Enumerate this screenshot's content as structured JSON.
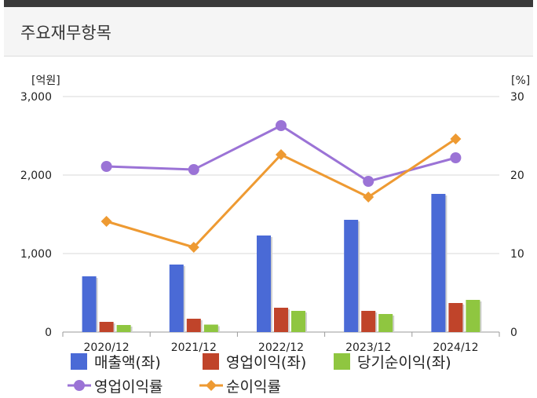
{
  "panel": {
    "title": "주요재무항목"
  },
  "chart_data": {
    "type": "bar",
    "categories": [
      "2020/12",
      "2021/12",
      "2022/12",
      "2023/12",
      "2024/12"
    ],
    "left_axis": {
      "unit_label": "[억원]",
      "ylim": [
        0,
        3000
      ],
      "ticks": [
        0,
        1000,
        2000,
        3000
      ],
      "tick_labels": [
        "0",
        "1,000",
        "2,000",
        "3,000"
      ]
    },
    "right_axis": {
      "unit_label": "[%]",
      "ylim": [
        0,
        30
      ],
      "ticks": [
        0,
        10,
        20,
        30
      ],
      "tick_labels": [
        "0",
        "10",
        "20",
        "30"
      ]
    },
    "grid": true,
    "legend_position": "bottom",
    "series": [
      {
        "name": "매출액(좌)",
        "type": "bar",
        "axis": "left",
        "color": "#4a6ad6",
        "values": [
          710,
          860,
          1230,
          1430,
          1760
        ]
      },
      {
        "name": "영업이익(좌)",
        "type": "bar",
        "axis": "left",
        "color": "#c0442a",
        "values": [
          130,
          170,
          310,
          270,
          370
        ]
      },
      {
        "name": "당기순이익(좌)",
        "type": "bar",
        "axis": "left",
        "color": "#8fc640",
        "values": [
          90,
          95,
          270,
          230,
          410
        ]
      },
      {
        "name": "영업이익률",
        "type": "line",
        "axis": "right",
        "color": "#9b73d6",
        "marker": "circle",
        "values": [
          21.1,
          20.7,
          26.3,
          19.2,
          22.2
        ]
      },
      {
        "name": "순이익률",
        "type": "line",
        "axis": "right",
        "color": "#ee9a32",
        "marker": "diamond",
        "values": [
          14.1,
          10.8,
          22.6,
          17.2,
          24.6
        ]
      }
    ]
  }
}
